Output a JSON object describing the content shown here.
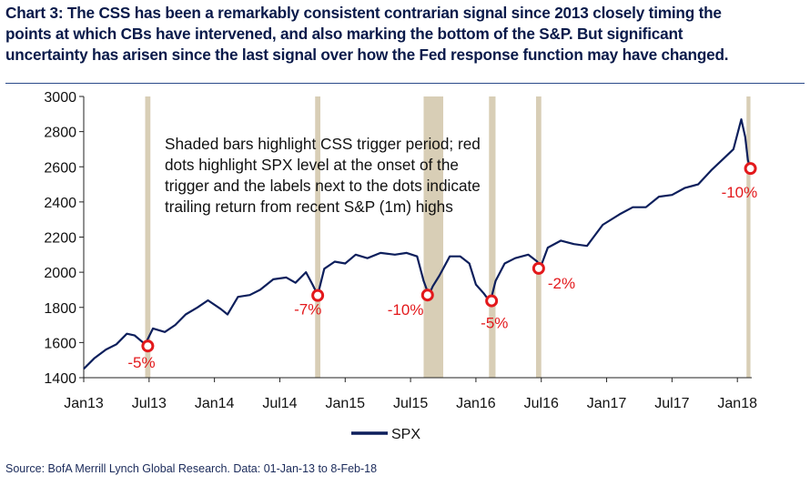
{
  "header": {
    "title": "Chart 3: The CSS has been a remarkably consistent contrarian signal since 2013 closely timing the\npoints at which CBs have intervened, and also marking the bottom of the S&P. But significant\nuncertainty has arisen since the last signal over how the Fed response function may have changed."
  },
  "footer": {
    "source": "Source: BofA Merrill Lynch Global Research. Data:  01-Jan-13 to 8-Feb-18"
  },
  "colors": {
    "line": "#0d1f5c",
    "shade": "#d8ceb6",
    "marker": "#e3191c",
    "annotation": "#e3191c",
    "axis": "#222222"
  },
  "chart_data": {
    "type": "line",
    "title": "",
    "xlabel": "",
    "ylabel": "",
    "ylim": [
      1400,
      3000
    ],
    "yticks": [
      1400,
      1600,
      1800,
      2000,
      2200,
      2400,
      2600,
      2800,
      3000
    ],
    "ytick_labels": [
      "1400",
      "1600",
      "1800",
      "2000",
      "2200",
      "2400",
      "2600",
      "2800",
      "3000"
    ],
    "xlim": [
      2013.0,
      2018.11
    ],
    "xticks": [
      2013.0,
      2013.5,
      2014.0,
      2014.5,
      2015.0,
      2015.5,
      2016.0,
      2016.5,
      2017.0,
      2017.5,
      2018.0
    ],
    "xtick_labels": [
      "Jan13",
      "Jul13",
      "Jan14",
      "Jul14",
      "Jan15",
      "Jul15",
      "Jan16",
      "Jul16",
      "Jan17",
      "Jul17",
      "Jan18"
    ],
    "legend": {
      "position": "bottom-center",
      "entries": [
        "SPX"
      ]
    },
    "series": [
      {
        "name": "SPX",
        "x": [
          2013.0,
          2013.08,
          2013.17,
          2013.25,
          2013.33,
          2013.39,
          2013.47,
          2013.53,
          2013.62,
          2013.7,
          2013.78,
          2013.87,
          2013.95,
          2014.05,
          2014.1,
          2014.18,
          2014.27,
          2014.35,
          2014.45,
          2014.55,
          2014.62,
          2014.7,
          2014.75,
          2014.79,
          2014.84,
          2014.92,
          2015.0,
          2015.08,
          2015.17,
          2015.27,
          2015.38,
          2015.47,
          2015.55,
          2015.6,
          2015.64,
          2015.67,
          2015.72,
          2015.8,
          2015.88,
          2015.95,
          2016.0,
          2016.06,
          2016.11,
          2016.15,
          2016.22,
          2016.3,
          2016.4,
          2016.47,
          2016.49,
          2016.55,
          2016.65,
          2016.75,
          2016.85,
          2016.9,
          2016.97,
          2017.1,
          2017.2,
          2017.3,
          2017.4,
          2017.5,
          2017.6,
          2017.7,
          2017.8,
          2017.9,
          2017.97,
          2018.03,
          2018.06,
          2018.08,
          2018.1
        ],
        "values": [
          1450,
          1510,
          1560,
          1590,
          1650,
          1640,
          1590,
          1680,
          1660,
          1700,
          1760,
          1800,
          1840,
          1790,
          1760,
          1860,
          1870,
          1900,
          1960,
          1970,
          1940,
          2000,
          1930,
          1870,
          2020,
          2060,
          2050,
          2100,
          2080,
          2110,
          2100,
          2110,
          2090,
          1950,
          1870,
          1920,
          1980,
          2090,
          2090,
          2050,
          1930,
          1880,
          1830,
          1950,
          2050,
          2080,
          2100,
          2060,
          2020,
          2140,
          2180,
          2160,
          2150,
          2200,
          2270,
          2330,
          2370,
          2370,
          2430,
          2440,
          2480,
          2500,
          2580,
          2650,
          2700,
          2870,
          2770,
          2640,
          2580
        ]
      }
    ],
    "shaded_periods": [
      [
        2013.47,
        2013.51
      ],
      [
        2014.77,
        2014.81
      ],
      [
        2015.6,
        2015.75
      ],
      [
        2016.1,
        2016.15
      ],
      [
        2016.46,
        2016.5
      ],
      [
        2018.07,
        2018.1
      ]
    ],
    "markers": [
      {
        "x": 2013.49,
        "y": 1580,
        "label": "-5%"
      },
      {
        "x": 2014.79,
        "y": 1868,
        "label": "-7%"
      },
      {
        "x": 2015.63,
        "y": 1870,
        "label": "-10%"
      },
      {
        "x": 2016.12,
        "y": 1837,
        "label": "-5%"
      },
      {
        "x": 2016.48,
        "y": 2022,
        "label": "-2%"
      },
      {
        "x": 2018.1,
        "y": 2590,
        "label": "-10%"
      }
    ],
    "annotations": [
      "Shaded bars highlight CSS trigger period; red",
      "dots highlight SPX level at the onset of the",
      "trigger and the labels next to the dots indicate",
      "trailing return from recent S&P (1m) highs"
    ]
  }
}
